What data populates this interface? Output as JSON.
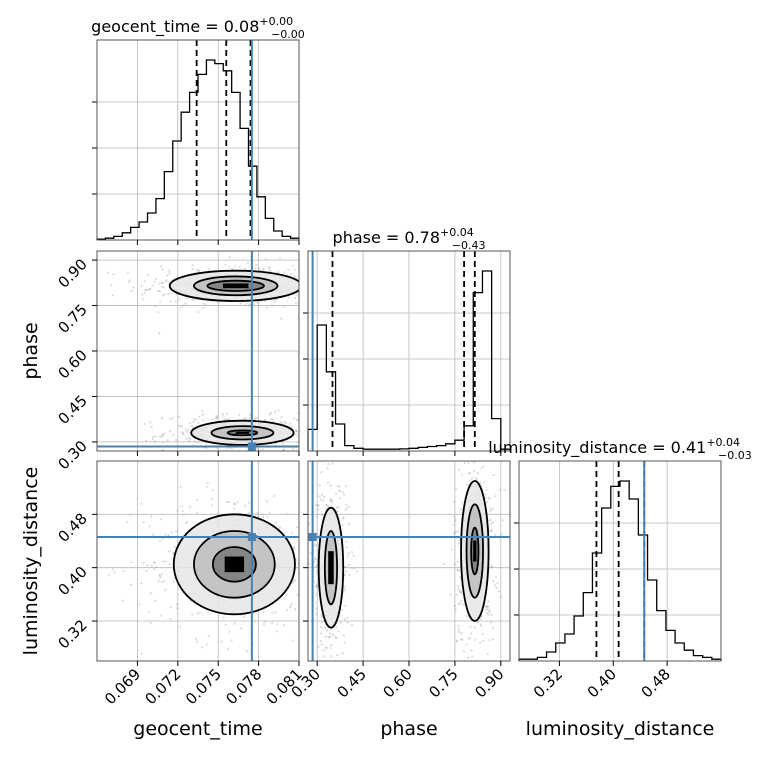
{
  "chart_data": {
    "type": "corner",
    "parameters": [
      {
        "key": "geocent_time",
        "label": "geocent_time",
        "range": [
          0.066,
          0.081
        ],
        "ticks": [
          "0.069",
          "0.072",
          "0.075",
          "0.078",
          "0.081"
        ],
        "tick_values": [
          0.069,
          0.072,
          0.075,
          0.078,
          0.081
        ],
        "title_main": "geocent_time = 0.08",
        "title_sup": "+0.00",
        "title_sub": "−0.00",
        "quantiles": [
          0.0734,
          0.0756,
          0.0774
        ],
        "truth": 0.0775
      },
      {
        "key": "phase",
        "label": "phase",
        "range": [
          0.27,
          0.93
        ],
        "ticks": [
          "0.30",
          "0.45",
          "0.60",
          "0.75",
          "0.90"
        ],
        "tick_values": [
          0.3,
          0.45,
          0.6,
          0.75,
          0.9
        ],
        "title_main": "phase = 0.78",
        "title_sup": "+0.04",
        "title_sub": "−0.43",
        "quantiles": [
          0.35,
          0.78,
          0.815
        ],
        "truth": 0.285
      },
      {
        "key": "luminosity_distance",
        "label": "luminosity_distance",
        "range": [
          0.26,
          0.56
        ],
        "ticks": [
          "0.32",
          "0.40",
          "0.48"
        ],
        "tick_values": [
          0.32,
          0.4,
          0.48
        ],
        "title_main": "luminosity_distance = 0.41",
        "title_sup": "+0.04",
        "title_sub": "−0.03",
        "quantiles": [
          0.375,
          0.408,
          0.446
        ],
        "truth": 0.446
      }
    ],
    "histograms": {
      "geocent_time": [
        0.005,
        0.01,
        0.02,
        0.04,
        0.07,
        0.1,
        0.15,
        0.23,
        0.38,
        0.55,
        0.71,
        0.82,
        0.92,
        1.0,
        0.98,
        0.94,
        0.82,
        0.62,
        0.41,
        0.24,
        0.12,
        0.05,
        0.02,
        0.01
      ],
      "phase": [
        0.12,
        0.7,
        0.44,
        0.15,
        0.03,
        0.015,
        0.01,
        0.01,
        0.01,
        0.01,
        0.012,
        0.015,
        0.02,
        0.025,
        0.03,
        0.04,
        0.06,
        0.14,
        0.88,
        1.0,
        0.18,
        0.01
      ],
      "luminosity_distance": [
        0.01,
        0.01,
        0.02,
        0.05,
        0.1,
        0.15,
        0.25,
        0.38,
        0.6,
        0.85,
        0.97,
        1.0,
        0.9,
        0.7,
        0.45,
        0.28,
        0.17,
        0.1,
        0.06,
        0.03,
        0.02,
        0.01
      ]
    },
    "contours_2d": {
      "geocent_time__phase": [
        {
          "cx": 0.0763,
          "cy": 0.815,
          "levels": [
            [
              0.0021,
              0.017
            ],
            [
              0.0031,
              0.031
            ],
            [
              0.0049,
              0.05
            ]
          ]
        },
        {
          "cx": 0.0768,
          "cy": 0.33,
          "levels": [
            [
              0.0011,
              0.008
            ],
            [
              0.0023,
              0.022
            ],
            [
              0.0038,
              0.04
            ]
          ]
        }
      ],
      "geocent_time__luminosity_distance": [
        {
          "cx": 0.0762,
          "cy": 0.405,
          "levels": [
            [
              0.0016,
              0.026
            ],
            [
              0.003,
              0.05
            ],
            [
              0.0045,
              0.075
            ]
          ]
        }
      ],
      "phase__luminosity_distance": [
        {
          "cx": 0.345,
          "cy": 0.4,
          "levels": [
            [
              0.02,
              0.055
            ],
            [
              0.04,
              0.09
            ]
          ]
        },
        {
          "cx": 0.815,
          "cy": 0.425,
          "levels": [
            [
              0.012,
              0.035
            ],
            [
              0.027,
              0.07
            ],
            [
              0.045,
              0.105
            ]
          ]
        }
      ]
    },
    "grid": true,
    "truth_color": "#4682b4"
  }
}
